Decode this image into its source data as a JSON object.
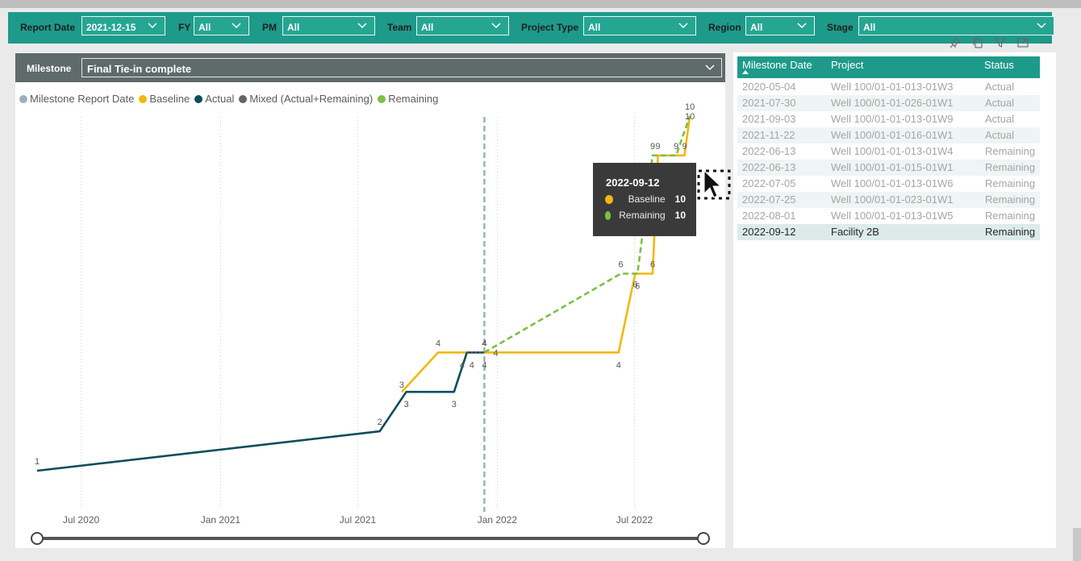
{
  "filters": [
    {
      "label": "Report Date",
      "value": "2021-12-15"
    },
    {
      "label": "FY",
      "value": "All"
    },
    {
      "label": "PM",
      "value": "All"
    },
    {
      "label": "Team",
      "value": "All"
    },
    {
      "label": "Project Type",
      "value": "All"
    },
    {
      "label": "Region",
      "value": "All"
    },
    {
      "label": "Stage",
      "value": "All"
    }
  ],
  "milestone": {
    "label": "Milestone",
    "value": "Final Tie-in complete"
  },
  "legend": [
    {
      "name": "Milestone Report Date",
      "color": "#9bb2bb"
    },
    {
      "name": "Baseline",
      "color": "#f2b80b"
    },
    {
      "name": "Actual",
      "color": "#0f4d5c"
    },
    {
      "name": "Mixed (Actual+Remaining)",
      "color": "#5e6766"
    },
    {
      "name": "Remaining",
      "color": "#7cc142"
    }
  ],
  "tooltip": {
    "date": "2022-09-12",
    "rows": [
      {
        "name": "Baseline",
        "value": "10",
        "color": "#f2b80b"
      },
      {
        "name": "Remaining",
        "value": "10",
        "color": "#7cc142"
      }
    ]
  },
  "table": {
    "headers": [
      "Milestone Date",
      "Project",
      "Status"
    ],
    "rows": [
      {
        "date": "2020-05-04",
        "project": "Well 100/01-01-013-01W3",
        "status": "Actual"
      },
      {
        "date": "2021-07-30",
        "project": "Well 100/01-01-026-01W1",
        "status": "Actual"
      },
      {
        "date": "2021-09-03",
        "project": "Well 100/01-01-013-01W9",
        "status": "Actual"
      },
      {
        "date": "2021-11-22",
        "project": "Well 100/01-01-016-01W1",
        "status": "Actual"
      },
      {
        "date": "2022-06-13",
        "project": "Well 100/01-01-013-01W4",
        "status": "Remaining"
      },
      {
        "date": "2022-06-13",
        "project": "Well 100/01-01-015-01W1",
        "status": "Remaining"
      },
      {
        "date": "2022-07-05",
        "project": "Well 100/01-01-013-01W6",
        "status": "Remaining"
      },
      {
        "date": "2022-07-25",
        "project": "Well 100/01-01-023-01W1",
        "status": "Remaining"
      },
      {
        "date": "2022-08-01",
        "project": "Well 100/01-01-013-01W5",
        "status": "Remaining"
      },
      {
        "date": "2022-09-12",
        "project": "Facility 2B",
        "status": "Remaining"
      }
    ],
    "selected_index": 9
  },
  "icons": [
    "pin-icon",
    "copy-icon",
    "filter-icon",
    "focus-mode-icon",
    "more-options-icon",
    "chevron-down-icon",
    "sort-ascending-icon",
    "cursor-icon"
  ],
  "chart_data": {
    "type": "line",
    "x_axis_type": "date",
    "x_ticks": [
      {
        "date": "2020-07-01",
        "label": "Jul 2020"
      },
      {
        "date": "2021-01-01",
        "label": "Jan 2021"
      },
      {
        "date": "2021-07-01",
        "label": "Jul 2021"
      },
      {
        "date": "2022-01-01",
        "label": "Jan 2022"
      },
      {
        "date": "2022-07-01",
        "label": "Jul 2022"
      }
    ],
    "x_range": [
      "2020-05-04",
      "2022-09-30"
    ],
    "y_range": [
      0,
      11
    ],
    "report_date": "2021-12-15",
    "grid": "vertical dotted",
    "series": [
      {
        "name": "Baseline",
        "color": "#f2b80b",
        "style": "solid",
        "points": [
          {
            "x": "2021-08-28",
            "y": 3,
            "label": "3"
          },
          {
            "x": "2021-10-15",
            "y": 4,
            "label": "4"
          },
          {
            "x": "2021-12-15",
            "y": 4,
            "label": "4"
          },
          {
            "x": "2022-06-10",
            "y": 4,
            "label": "4"
          },
          {
            "x": "2022-07-02",
            "y": 6,
            "label": "6"
          },
          {
            "x": "2022-07-25",
            "y": 6,
            "label": "6"
          },
          {
            "x": "2022-08-01",
            "y": 9,
            "label": "9"
          },
          {
            "x": "2022-09-05",
            "y": 9,
            "label": "9"
          },
          {
            "x": "2022-09-12",
            "y": 10,
            "label": "10"
          }
        ]
      },
      {
        "name": "Actual",
        "color": "#0f4d5c",
        "style": "solid",
        "points": [
          {
            "x": "2020-05-04",
            "y": 1,
            "label": "1"
          },
          {
            "x": "2021-07-30",
            "y": 2,
            "label": "2"
          },
          {
            "x": "2021-09-03",
            "y": 3,
            "label": "3"
          },
          {
            "x": "2021-11-05",
            "y": 3,
            "label": "3"
          },
          {
            "x": "2021-11-22",
            "y": 4,
            "label": "4"
          },
          {
            "x": "2021-12-15",
            "y": 4,
            "label": "4"
          }
        ]
      },
      {
        "name": "Mixed (Actual+Remaining)",
        "color": "#5e6766",
        "style": "dotted",
        "points": [
          {
            "x": "2021-11-22",
            "y": 4,
            "label": "4"
          },
          {
            "x": "2021-12-15",
            "y": 4,
            "label": "4"
          }
        ]
      },
      {
        "name": "Remaining",
        "color": "#7cc142",
        "style": "dashed",
        "points": [
          {
            "x": "2021-12-15",
            "y": 4,
            "label": "4"
          },
          {
            "x": "2022-06-13",
            "y": 6,
            "label": "6"
          },
          {
            "x": "2022-07-05",
            "y": 6,
            "label": "6"
          },
          {
            "x": "2022-07-25",
            "y": 9,
            "label": "9"
          },
          {
            "x": "2022-08-25",
            "y": 9,
            "label": "9"
          },
          {
            "x": "2022-09-12",
            "y": 10,
            "label": "10"
          }
        ]
      }
    ]
  }
}
